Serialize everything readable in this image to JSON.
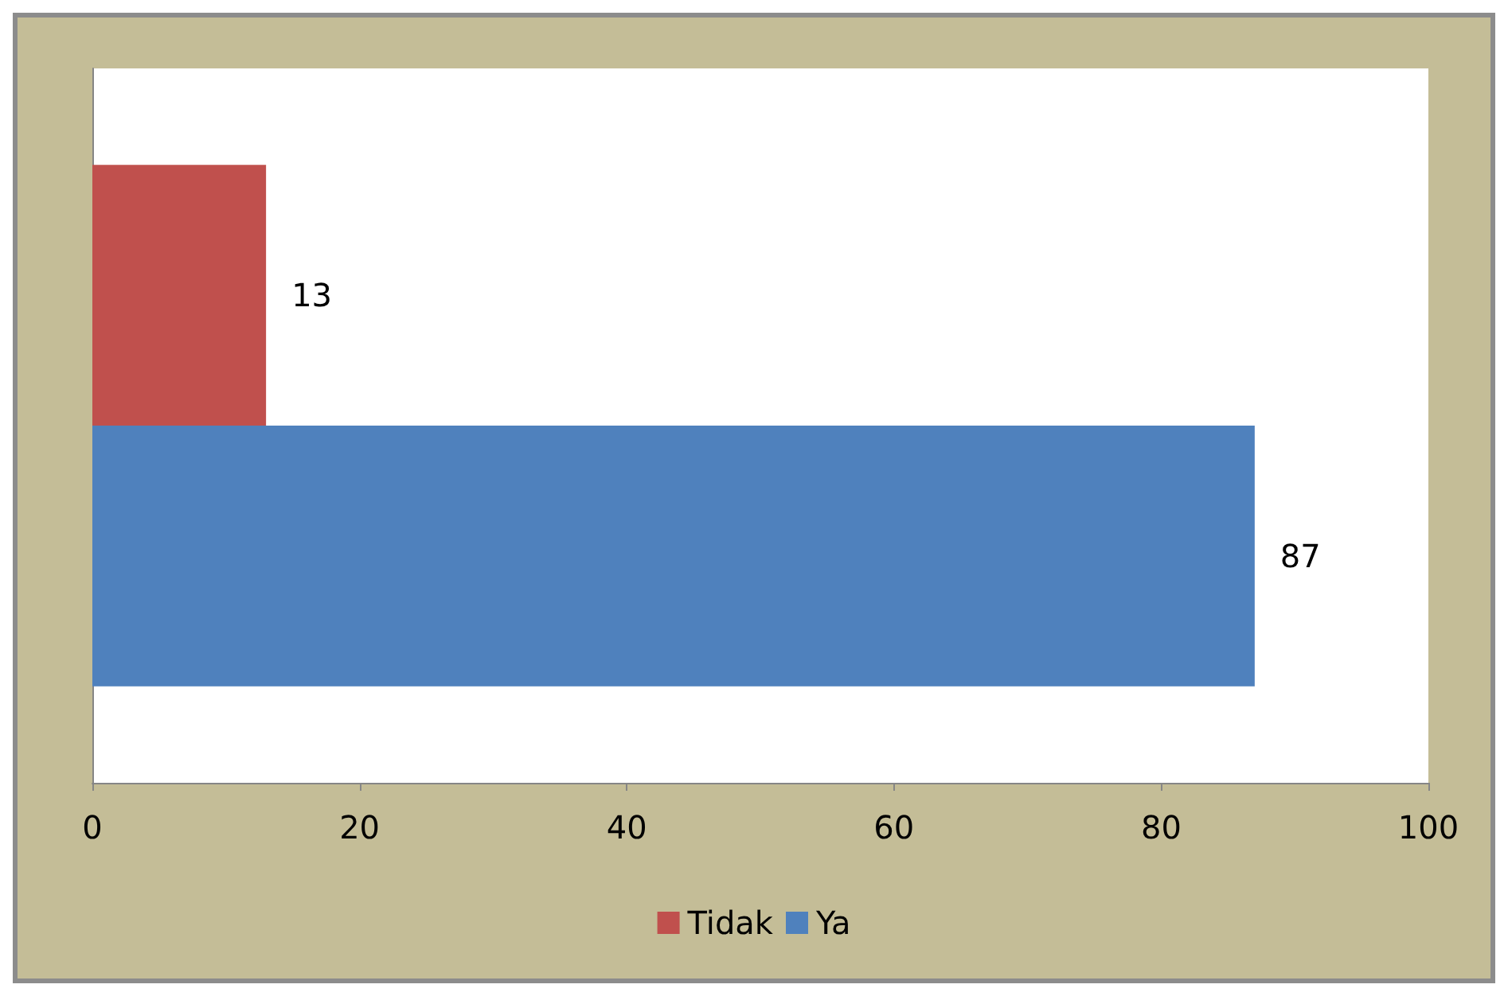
{
  "chart_data": {
    "type": "bar",
    "orientation": "horizontal",
    "categories": [
      null
    ],
    "series": [
      {
        "name": "Tidak",
        "color": "#c0504d",
        "values": [
          13
        ]
      },
      {
        "name": "Ya",
        "color": "#4f81bd",
        "values": [
          87
        ]
      }
    ],
    "xlim": [
      0,
      100
    ],
    "xticks": [
      0,
      20,
      40,
      60,
      80,
      100
    ],
    "data_labels": true,
    "legend": "bottom",
    "grid": false
  }
}
